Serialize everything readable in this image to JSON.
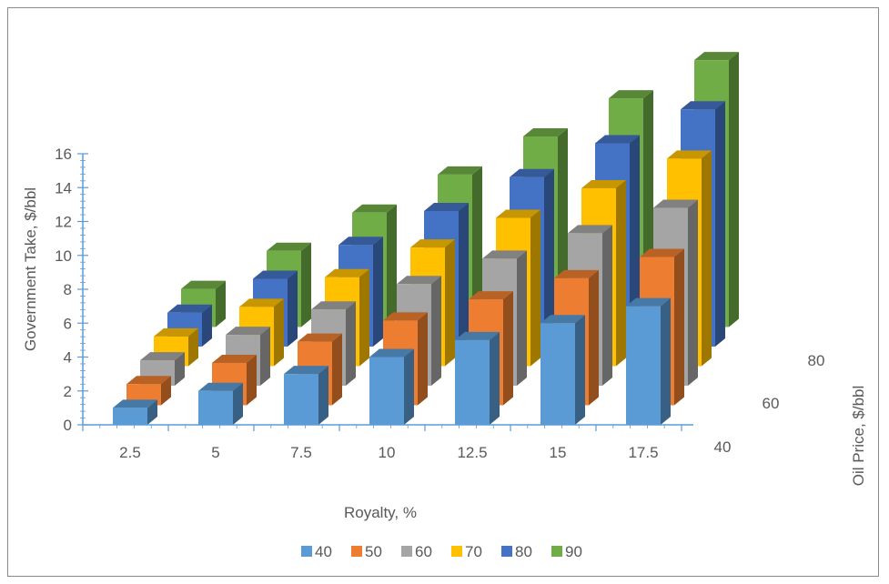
{
  "chart_data": {
    "type": "bar",
    "chart_style": "3d-column",
    "xlabel": "Royalty, %",
    "ylabel": "Government Take, $/bbl",
    "zlabel": "Oil Price, $/bbl",
    "categories": [
      "2.5",
      "5",
      "7.5",
      "10",
      "12.5",
      "15",
      "17.5"
    ],
    "y_ticks": [
      "0",
      "2",
      "4",
      "6",
      "8",
      "10",
      "12",
      "14",
      "16"
    ],
    "depth_tick_labels": [
      "40",
      "60",
      "80"
    ],
    "ylim": [
      0,
      16
    ],
    "grid": false,
    "legend_position": "bottom",
    "series": [
      {
        "name": "40",
        "color": "#5B9BD5",
        "values": [
          1,
          2,
          3,
          4,
          5,
          6,
          7
        ]
      },
      {
        "name": "50",
        "color": "#ED7D31",
        "values": [
          1.25,
          2.5,
          3.75,
          5,
          6.25,
          7.5,
          8.75
        ]
      },
      {
        "name": "60",
        "color": "#A5A5A5",
        "values": [
          1.5,
          3,
          4.5,
          6,
          7.5,
          9,
          10.5
        ]
      },
      {
        "name": "70",
        "color": "#FFC000",
        "values": [
          1.75,
          3.5,
          5.25,
          7,
          8.75,
          10.5,
          12.25
        ]
      },
      {
        "name": "80",
        "color": "#4472C4",
        "values": [
          2,
          4,
          6,
          8,
          10,
          12,
          14
        ]
      },
      {
        "name": "90",
        "color": "#70AD47",
        "values": [
          2.25,
          4.5,
          6.75,
          9,
          11.25,
          13.5,
          15.75
        ]
      }
    ]
  }
}
